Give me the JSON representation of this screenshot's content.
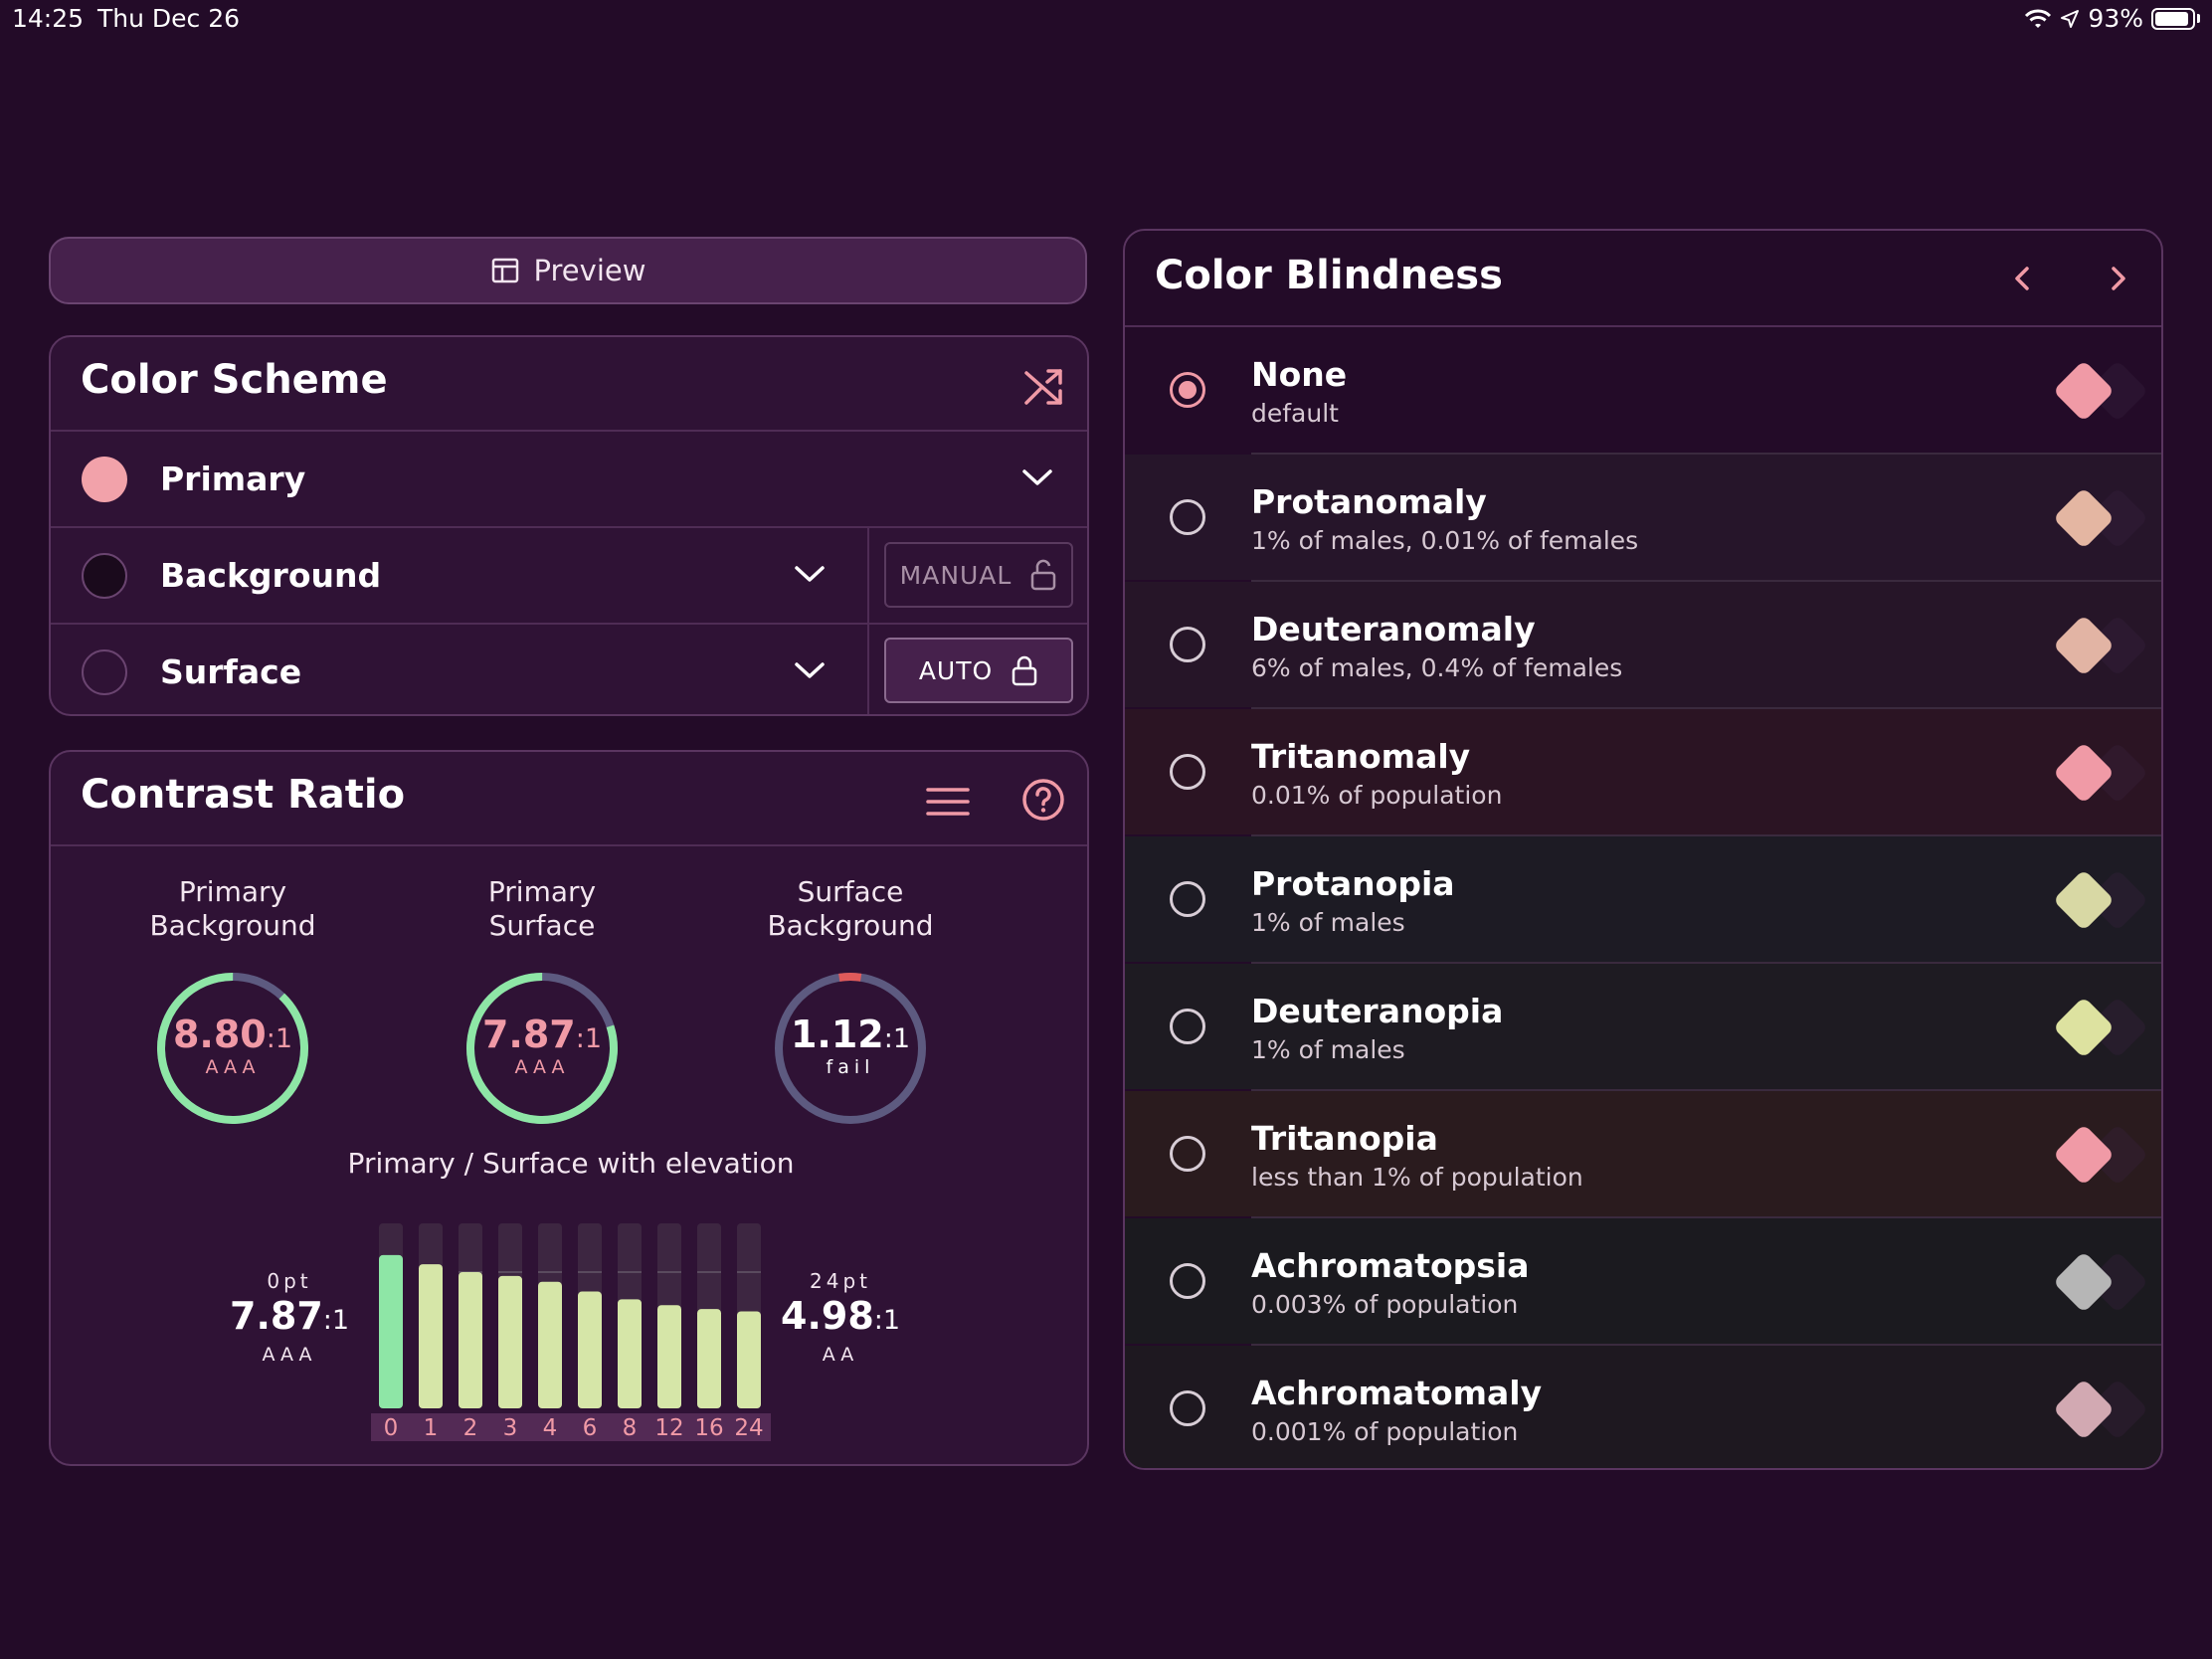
{
  "status_bar": {
    "time": "14:25",
    "date": "Thu Dec 26",
    "battery": "93%"
  },
  "preview": {
    "label": "Preview",
    "icon": "layout-icon"
  },
  "color_scheme": {
    "title": "Color Scheme",
    "rows": [
      {
        "label": "Primary",
        "swatch": "#f2a2aa"
      },
      {
        "label": "Background",
        "swatch": "#1a0a1c",
        "mode": "MANUAL"
      },
      {
        "label": "Surface",
        "swatch": "#2f1235",
        "mode": "AUTO"
      }
    ]
  },
  "contrast": {
    "title": "Contrast Ratio",
    "gauges": [
      {
        "line1": "Primary",
        "line2": "Background",
        "value": "8.80",
        "suffix": ":1",
        "rating": "AAA",
        "fraction": 0.88,
        "color": "#8ee6a6"
      },
      {
        "line1": "Primary",
        "line2": "Surface",
        "value": "7.87",
        "suffix": ":1",
        "rating": "AAA",
        "fraction": 0.8,
        "color": "#8ee6a6"
      },
      {
        "line1": "Surface",
        "line2": "Background",
        "value": "1.12",
        "suffix": ":1",
        "rating": "fail",
        "fraction": 0.02,
        "color": "#e05a5a"
      }
    ],
    "elevation": {
      "title": "Primary / Surface with elevation",
      "left": {
        "pt": "0pt",
        "value": "7.87",
        "suffix": ":1",
        "rating": "AAA"
      },
      "right": {
        "pt": "24pt",
        "value": "4.98",
        "suffix": ":1",
        "rating": "AA"
      },
      "bars": [
        {
          "label": "0",
          "value": 7.87
        },
        {
          "label": "1",
          "value": 7.4
        },
        {
          "label": "2",
          "value": 7.0
        },
        {
          "label": "3",
          "value": 6.8
        },
        {
          "label": "4",
          "value": 6.5
        },
        {
          "label": "6",
          "value": 6.0
        },
        {
          "label": "8",
          "value": 5.6
        },
        {
          "label": "12",
          "value": 5.3
        },
        {
          "label": "16",
          "value": 5.1
        },
        {
          "label": "24",
          "value": 4.98
        }
      ]
    }
  },
  "color_blindness": {
    "title": "Color Blindness",
    "items": [
      {
        "name": "None",
        "sub": "default",
        "color": "#f09aa6",
        "bg": "#230b28",
        "selected": true
      },
      {
        "name": "Protanomaly",
        "sub": "1% of males, 0.01% of females",
        "color": "#e4b6a2",
        "bg": "#26152a",
        "selected": false
      },
      {
        "name": "Deuteranomaly",
        "sub": "6% of males, 0.4% of females",
        "color": "#e2b4a4",
        "bg": "#261528",
        "selected": false
      },
      {
        "name": "Tritanomaly",
        "sub": "0.01% of population",
        "color": "#f09aa6",
        "bg": "#2b1423",
        "selected": false
      },
      {
        "name": "Protanopia",
        "sub": "1% of males",
        "color": "#d8d8a4",
        "bg": "#1d1b24",
        "selected": false
      },
      {
        "name": "Deuteranopia",
        "sub": "1% of males",
        "color": "#dde2a0",
        "bg": "#1e1b22",
        "selected": false
      },
      {
        "name": "Tritanopia",
        "sub": "less than 1% of population",
        "color": "#f09aa6",
        "bg": "#2a1b1e",
        "selected": false
      },
      {
        "name": "Achromatopsia",
        "sub": "0.003% of population",
        "color": "#b6b6b6",
        "bg": "#1b1a1f",
        "selected": false
      },
      {
        "name": "Achromatomaly",
        "sub": "0.001% of population",
        "color": "#d2a9b2",
        "bg": "#1e1820",
        "selected": false
      }
    ]
  }
}
